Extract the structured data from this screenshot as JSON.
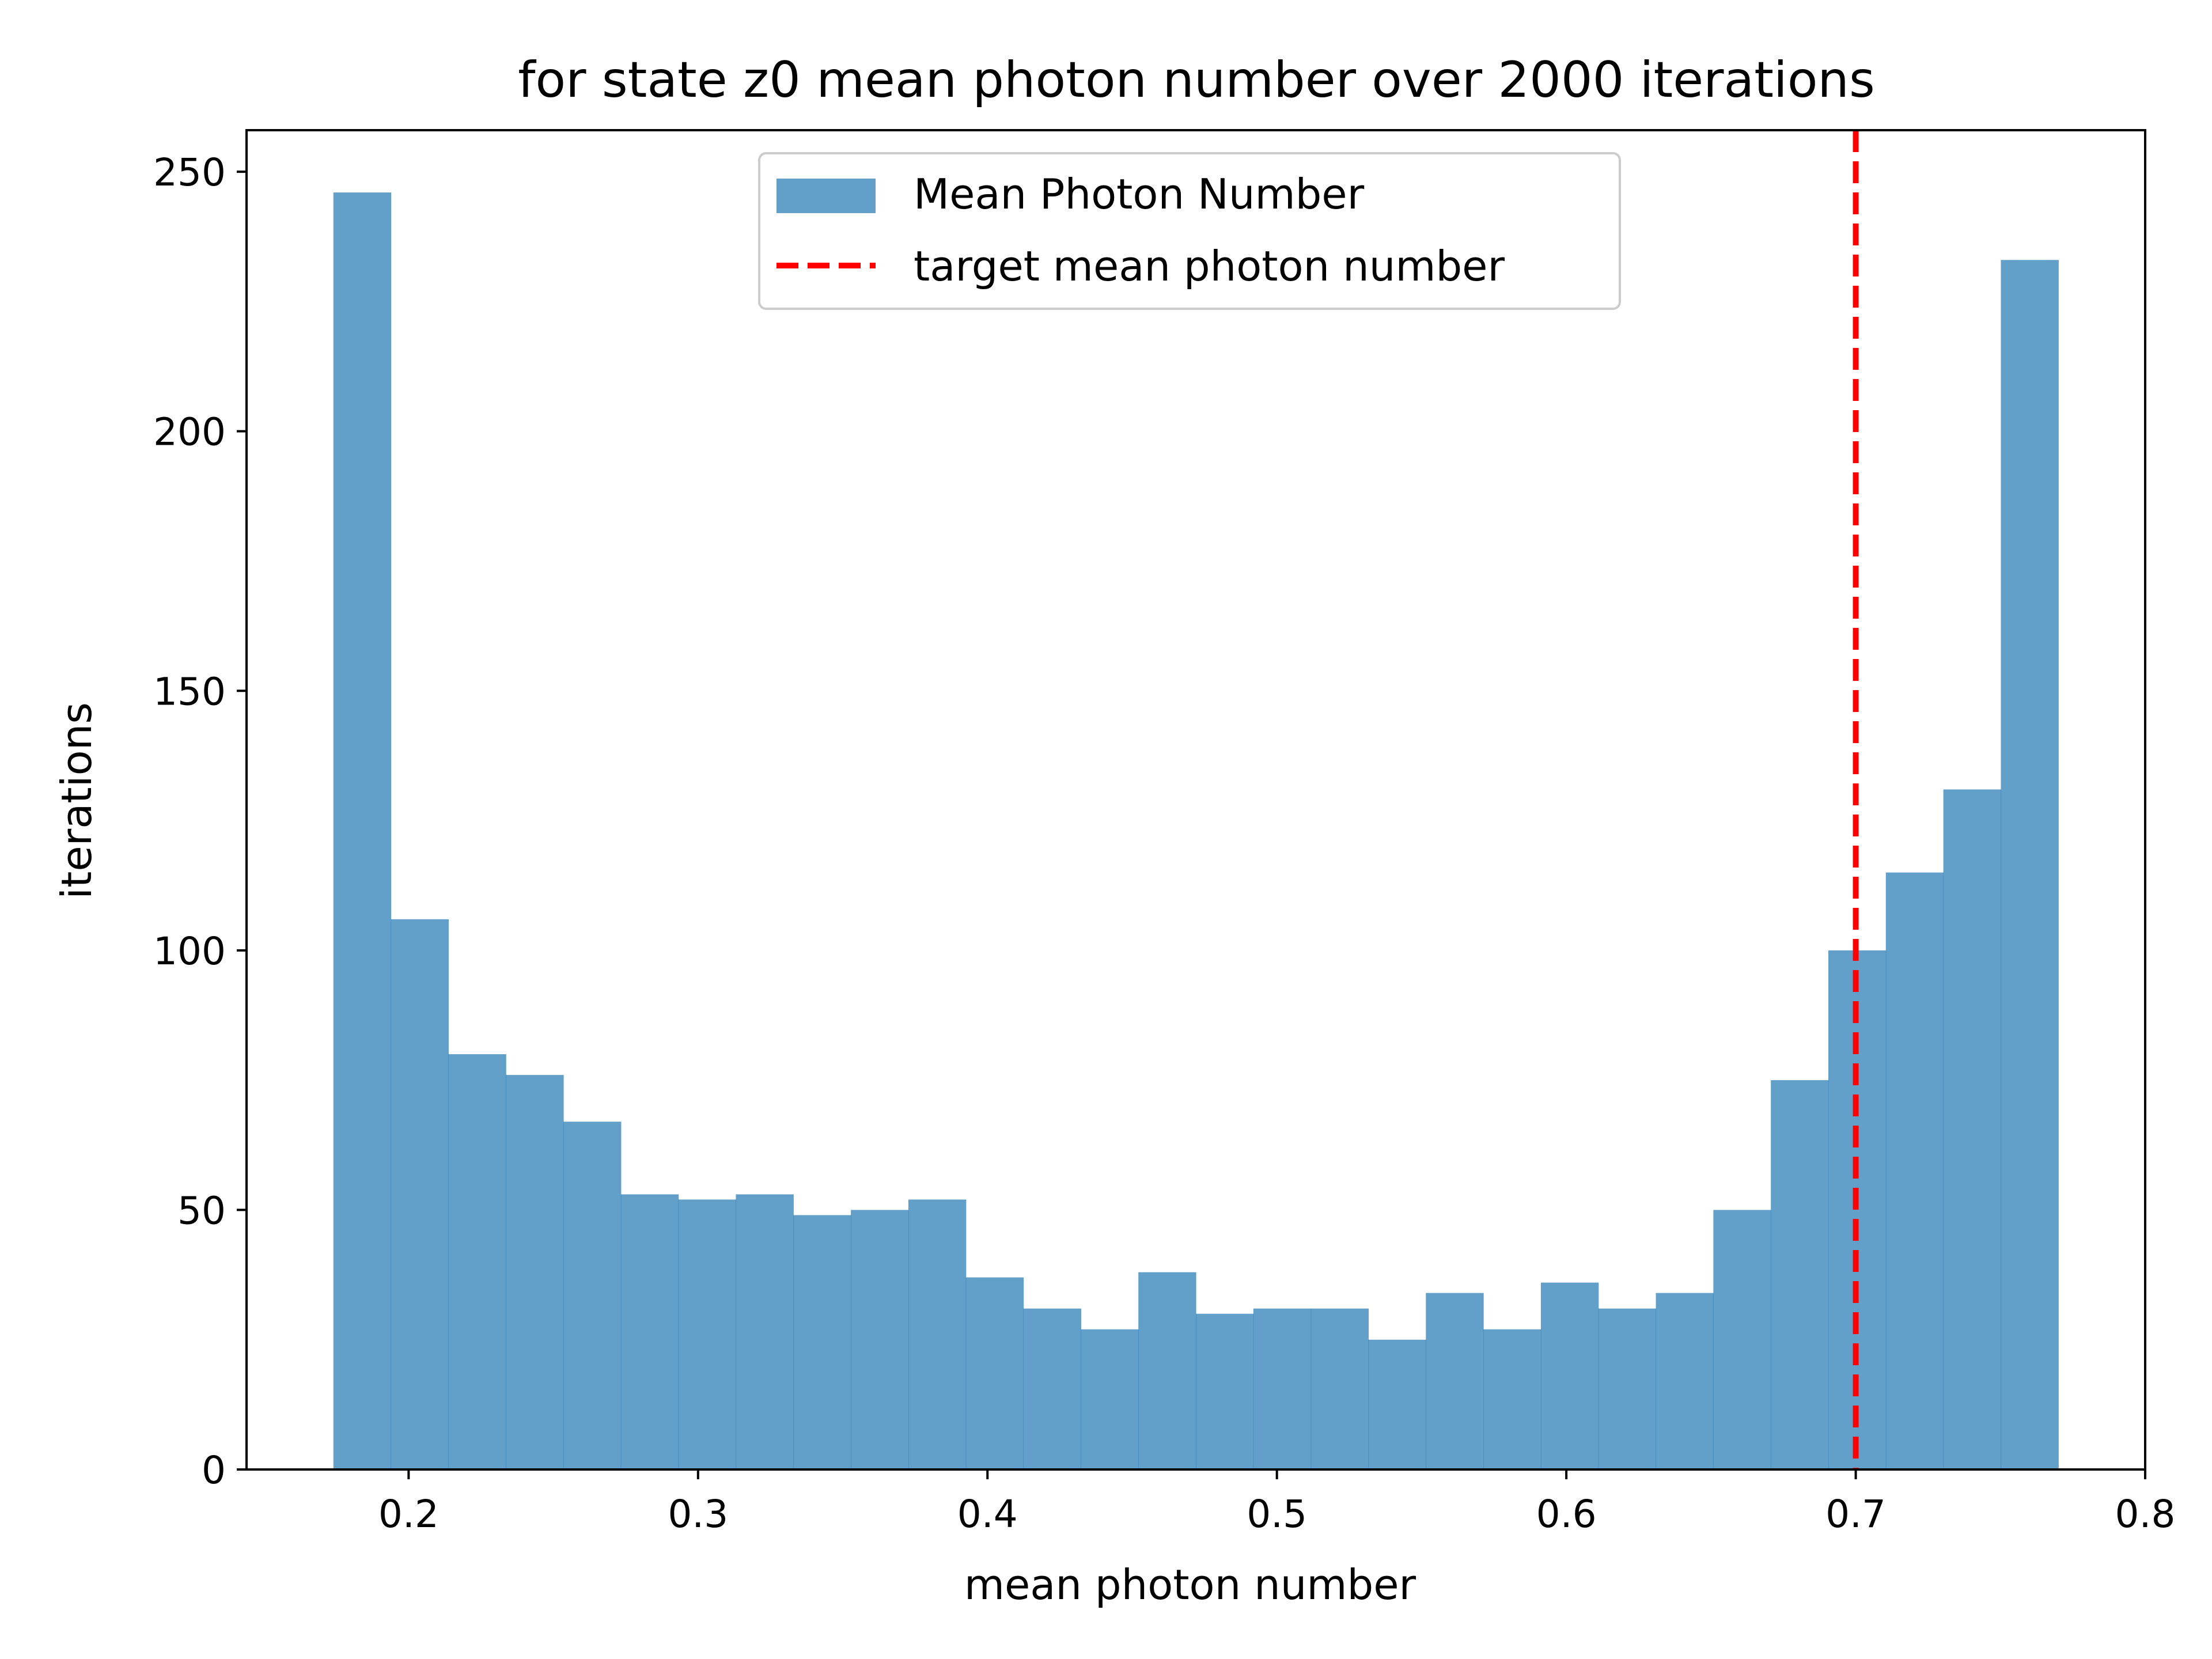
{
  "chart_data": {
    "type": "bar",
    "title": "for state z0 mean photon number over 2000 iterations",
    "xlabel": "mean photon number",
    "ylabel": "iterations",
    "xlim": [
      0.144,
      0.8
    ],
    "ylim": [
      0,
      258
    ],
    "xticks": [
      0.2,
      0.3,
      0.4,
      0.5,
      0.6,
      0.7,
      0.8
    ],
    "xtick_labels": [
      "0.2",
      "0.3",
      "0.4",
      "0.5",
      "0.6",
      "0.7",
      "0.8"
    ],
    "yticks": [
      0,
      50,
      100,
      150,
      200,
      250
    ],
    "ytick_labels": [
      "0",
      "50",
      "100",
      "150",
      "200",
      "250"
    ],
    "bins": {
      "start": 0.174,
      "end": 0.77,
      "counts": [
        246,
        106,
        80,
        76,
        67,
        53,
        52,
        53,
        49,
        50,
        52,
        37,
        31,
        27,
        38,
        30,
        31,
        31,
        25,
        34,
        27,
        36,
        31,
        34,
        50,
        75,
        100,
        115,
        131,
        233
      ]
    },
    "series": [
      {
        "name": "Mean Photon Number",
        "kind": "histogram",
        "color": "#1f77b4",
        "opacity": 0.7
      },
      {
        "name": "target mean photon number",
        "kind": "vline",
        "x": 0.7,
        "color": "#ff0000",
        "style": "dashed"
      }
    ],
    "legend": {
      "placement": "upper-center",
      "items": [
        "Mean Photon Number",
        "target mean photon number"
      ]
    },
    "grid": false
  }
}
